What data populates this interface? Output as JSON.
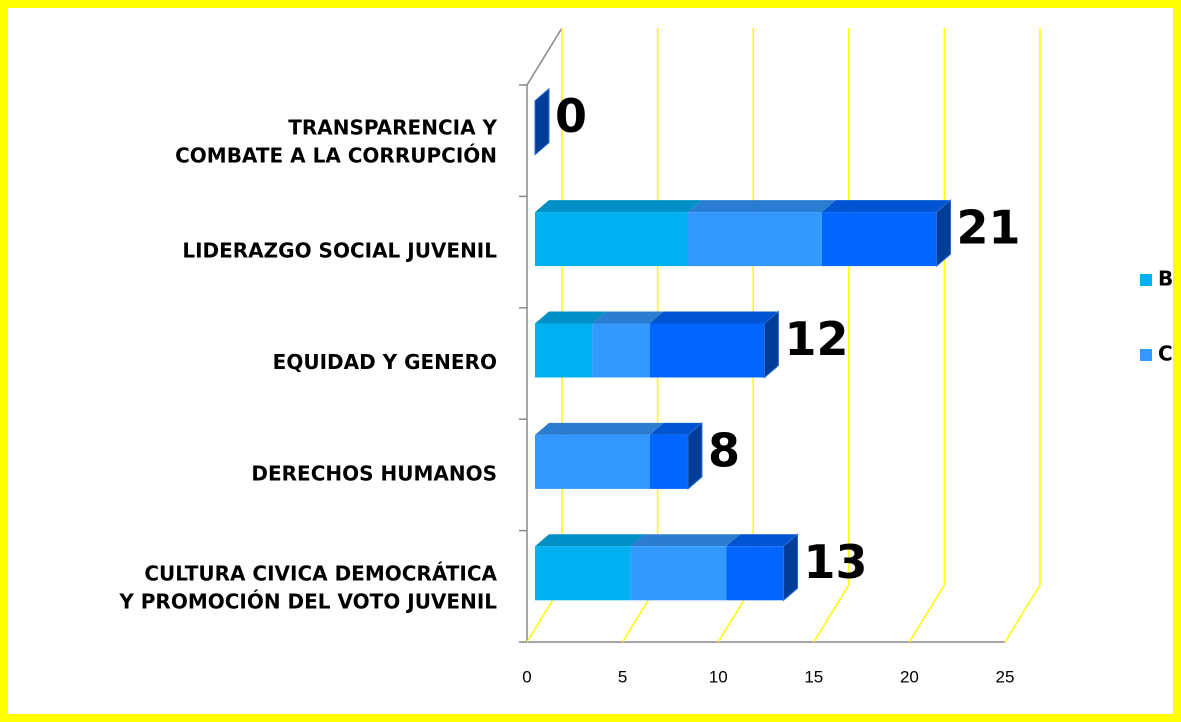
{
  "chart_data": {
    "type": "bar3d_stacked_horizontal",
    "categories": [
      "TRANSPARENCIA Y COMBATE A LA CORRUPCIÓN",
      "LIDERAZGO SOCIAL JUVENIL",
      "EQUIDAD Y GENERO",
      "DERECHOS HUMANOS",
      "CULTURA CIVICA DEMOCRÁTICA Y PROMOCIÓN DEL VOTO JUVENIL"
    ],
    "series": [
      {
        "name": "B",
        "color": "#00b0f0",
        "values": [
          0,
          8,
          3,
          0,
          5
        ]
      },
      {
        "name": "C",
        "color": "#3399ff",
        "values": [
          0,
          7,
          3,
          6,
          5
        ]
      },
      {
        "color": "#0066ff",
        "values": [
          0,
          6,
          6,
          2,
          3
        ]
      }
    ],
    "totals": [
      0,
      21,
      12,
      8,
      13
    ],
    "xlim": [
      0,
      25
    ],
    "xticks": [
      0,
      5,
      10,
      15,
      20,
      25
    ],
    "grid": true,
    "grid_color": "#ffff00",
    "legend": "right"
  }
}
